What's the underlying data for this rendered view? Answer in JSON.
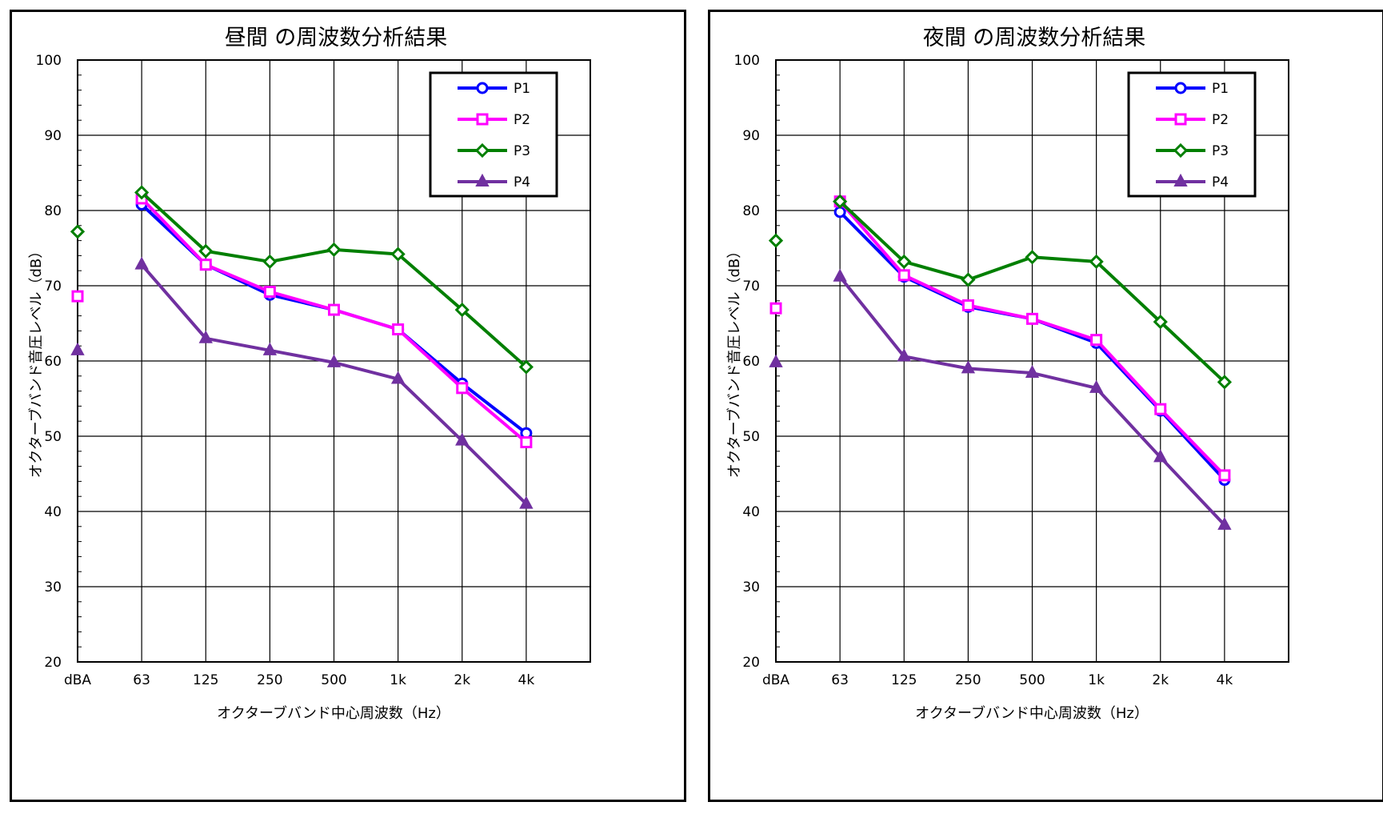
{
  "chart_data": [
    {
      "type": "line",
      "title": "昼間 の周波数分析結果",
      "xlabel": "オクターブバンド中心周波数（Hz）",
      "ylabel": "オクターブバンド音圧レベル（dB）",
      "categories": [
        "dBA",
        "63",
        "125",
        "250",
        "500",
        "1k",
        "2k",
        "4k"
      ],
      "ylim": [
        20,
        100
      ],
      "yticks": [
        20,
        30,
        40,
        50,
        60,
        70,
        80,
        90,
        100
      ],
      "grid": true,
      "legend_position": "top-right",
      "series": [
        {
          "name": "P1",
          "color": "#0000ff",
          "marker": "circle",
          "dba": null,
          "values": [
            null,
            80.8,
            72.8,
            68.8,
            66.8,
            64.2,
            57.0,
            50.4
          ]
        },
        {
          "name": "P2",
          "color": "#ff00ff",
          "marker": "square",
          "dba": 68.6,
          "values": [
            null,
            81.6,
            72.8,
            69.2,
            66.8,
            64.2,
            56.4,
            49.2
          ]
        },
        {
          "name": "P3",
          "color": "#007f00",
          "marker": "diamond",
          "dba": 77.2,
          "values": [
            null,
            82.4,
            74.6,
            73.2,
            74.8,
            74.2,
            66.8,
            59.2
          ]
        },
        {
          "name": "P4",
          "color": "#7030a0",
          "marker": "triangle",
          "dba": 61.4,
          "values": [
            null,
            72.8,
            63.0,
            61.4,
            59.8,
            57.6,
            49.4,
            41.0
          ]
        }
      ]
    },
    {
      "type": "line",
      "title": "夜間 の周波数分析結果",
      "xlabel": "オクターブバンド中心周波数（Hz）",
      "ylabel": "オクターブバンド音圧レベル（dB）",
      "categories": [
        "dBA",
        "63",
        "125",
        "250",
        "500",
        "1k",
        "2k",
        "4k"
      ],
      "ylim": [
        20,
        100
      ],
      "yticks": [
        20,
        30,
        40,
        50,
        60,
        70,
        80,
        90,
        100
      ],
      "grid": true,
      "legend_position": "top-right",
      "series": [
        {
          "name": "P1",
          "color": "#0000ff",
          "marker": "circle",
          "dba": null,
          "values": [
            null,
            79.8,
            71.2,
            67.2,
            65.6,
            62.4,
            53.4,
            44.2
          ]
        },
        {
          "name": "P2",
          "color": "#ff00ff",
          "marker": "square",
          "dba": 67.0,
          "values": [
            null,
            81.2,
            71.4,
            67.4,
            65.6,
            62.8,
            53.6,
            44.8
          ]
        },
        {
          "name": "P3",
          "color": "#007f00",
          "marker": "diamond",
          "dba": 76.0,
          "values": [
            null,
            81.2,
            73.2,
            70.8,
            73.8,
            73.2,
            65.2,
            57.2
          ]
        },
        {
          "name": "P4",
          "color": "#7030a0",
          "marker": "triangle",
          "dba": 59.8,
          "values": [
            null,
            71.2,
            60.6,
            59.0,
            58.4,
            56.4,
            47.2,
            38.2
          ]
        }
      ]
    }
  ]
}
